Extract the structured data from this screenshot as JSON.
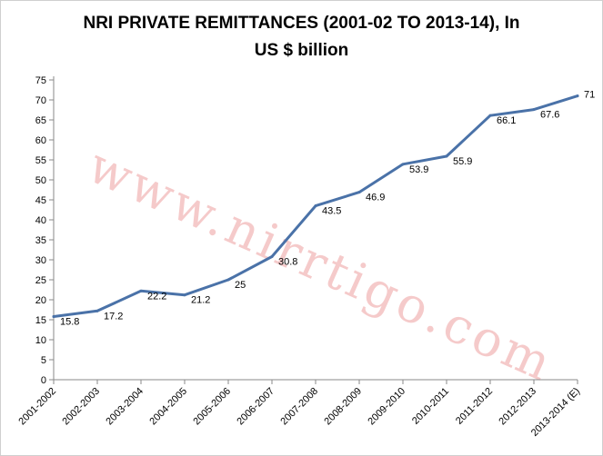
{
  "chart_data": {
    "type": "line",
    "title_line1": "NRI PRIVATE REMITTANCES (2001-02  TO 2013-14), In",
    "title_line2": "US $ billion",
    "xlabel": "",
    "ylabel": "",
    "categories": [
      "2001-2002",
      "2002-2003",
      "2003-2004",
      "2004-2005",
      "2005-2006",
      "2006-2007",
      "2007-2008",
      "2008-2009",
      "2009-2010",
      "2010-2011",
      "2011-2012",
      "2012-2013",
      "2013-2014 (E)"
    ],
    "series": [
      {
        "values": [
          15.8,
          17.2,
          22.2,
          21.2,
          25,
          30.8,
          43.5,
          46.9,
          53.9,
          55.9,
          66.1,
          67.6,
          71
        ]
      }
    ],
    "data_labels": [
      "15.8",
      "17.2",
      "22.2",
      "21.2",
      "25",
      "30.8",
      "43.5",
      "46.9",
      "53.9",
      "55.9",
      "66.1",
      "67.6",
      "71"
    ],
    "ylim": [
      0,
      75
    ],
    "yticks": [
      0,
      5,
      10,
      15,
      20,
      25,
      30,
      35,
      40,
      45,
      50,
      55,
      60,
      65,
      70,
      75
    ],
    "grid": false,
    "legend": "none",
    "line_color": "#4a72a8"
  },
  "watermark": "www.nirrtigo.com"
}
